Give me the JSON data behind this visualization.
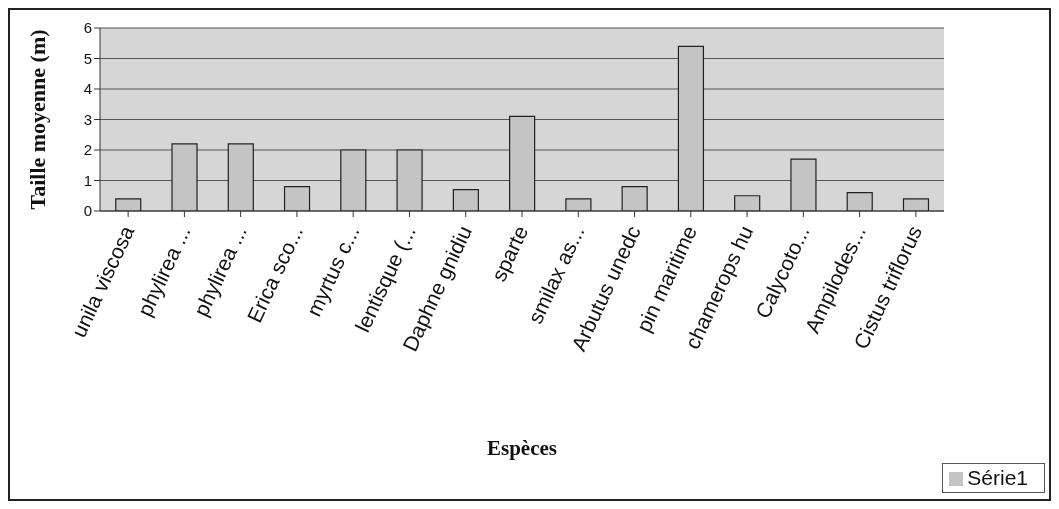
{
  "chart_data": {
    "type": "bar",
    "xlabel": "Espèces",
    "ylabel": "Taille moyenne (m)",
    "categories": [
      "unila viscosa",
      "phylirea ...",
      "phylirea ...",
      "Erica sco...",
      "myrtus c...",
      "lentisque (...",
      "Daphne gnidiu",
      "sparte",
      "smilax as...",
      "Arbutus unedc",
      "pin maritime",
      "chamerops hu",
      "Calycoto...",
      "Ampilodes...",
      "Cistus triflorus"
    ],
    "series": [
      {
        "name": "Série1",
        "color": "#c4c4c4",
        "values": [
          0.4,
          2.2,
          2.2,
          0.8,
          2.0,
          2.0,
          0.7,
          3.1,
          0.4,
          0.8,
          5.4,
          0.5,
          1.7,
          0.6,
          0.4
        ]
      }
    ],
    "ylim": [
      0,
      6
    ],
    "yticks": [
      0,
      1,
      2,
      3,
      4,
      5,
      6
    ],
    "grid": "y",
    "legend": "bottom right"
  }
}
